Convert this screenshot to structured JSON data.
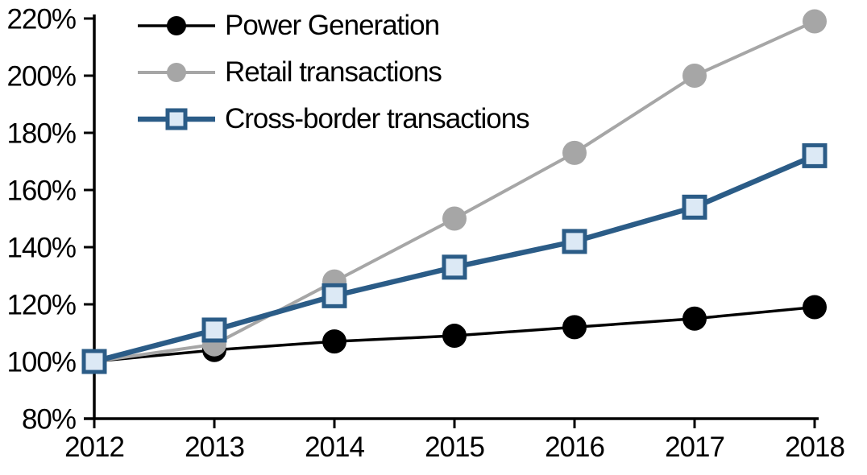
{
  "chart_data": {
    "type": "line",
    "x_categories": [
      "2012",
      "2013",
      "2014",
      "2015",
      "2016",
      "2017",
      "2018"
    ],
    "y_ticks": [
      "80%",
      "100%",
      "120%",
      "140%",
      "160%",
      "180%",
      "200%",
      "220%"
    ],
    "ylim": [
      80,
      220
    ],
    "ytick_step": 20,
    "grid": false,
    "legend_position": "top-left-inside",
    "axis_color": "#000000",
    "series": [
      {
        "name": "Power Generation",
        "values": [
          100,
          104,
          107,
          109,
          112,
          115,
          119
        ],
        "color": "#000000",
        "marker": "circle",
        "marker_fill": "#000000",
        "marker_stroke": "#000000",
        "line_width": 3.5
      },
      {
        "name": "Retail transactions",
        "values": [
          100,
          106,
          128,
          150,
          173,
          200,
          219
        ],
        "color": "#a6a6a6",
        "marker": "circle",
        "marker_fill": "#a6a6a6",
        "marker_stroke": "#a6a6a6",
        "line_width": 4
      },
      {
        "name": "Cross-border transactions",
        "values": [
          100,
          111,
          123,
          133,
          142,
          154,
          172
        ],
        "color": "#2b5c87",
        "marker": "square",
        "marker_fill": "#dce9f5",
        "marker_stroke": "#2b5c87",
        "line_width": 6.5
      }
    ]
  }
}
